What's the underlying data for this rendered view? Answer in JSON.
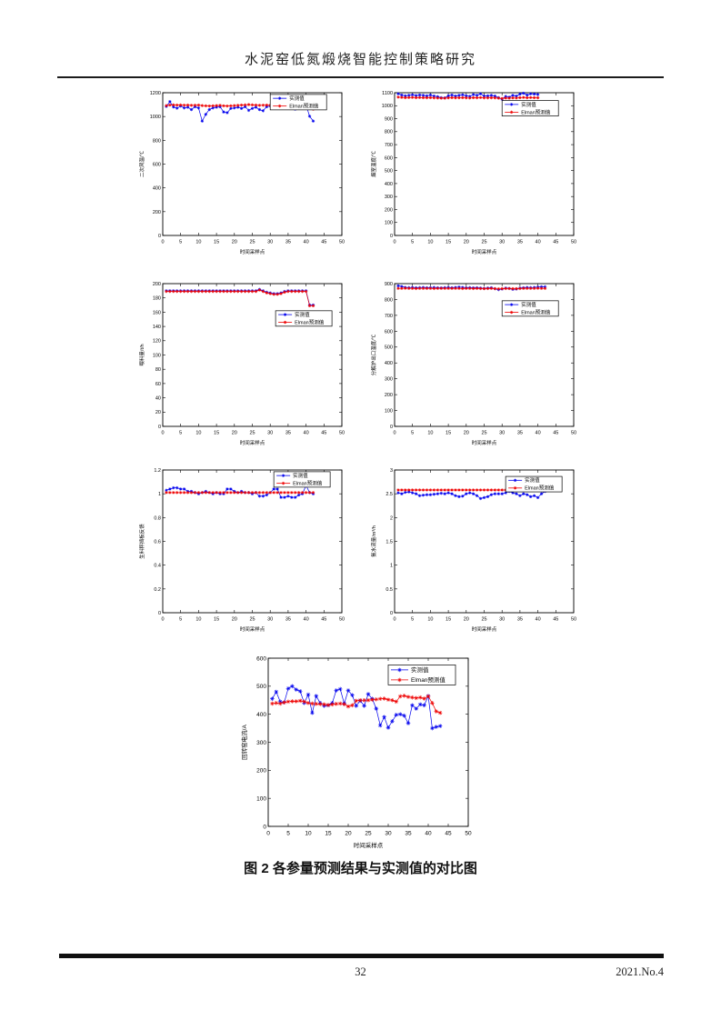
{
  "page": {
    "header_title": "水泥窑低氮煅烧智能控制策略研究",
    "caption": "图 2 各参量预测结果与实测值的对比图",
    "footer": {
      "page_number": "32",
      "issue": "2021.No.4"
    }
  },
  "chart_defaults": {
    "xlabel": "时间采样点",
    "legend": [
      "实测值",
      "Elman预测值"
    ],
    "colors": {
      "measured": "#0000ee",
      "predicted": "#ee0000"
    }
  },
  "chart_data": [
    {
      "type": "line",
      "ylabel": "二次风温/℃",
      "xlabel": "时间采样点",
      "xlim": [
        0,
        50
      ],
      "xtick": 5,
      "ylim": [
        0,
        1200
      ],
      "ytick": 200,
      "legend_pos": [
        0.6,
        0.012
      ],
      "series": [
        {
          "name": "实测值",
          "color": "#0000ee",
          "values": [
            1085,
            1125,
            1080,
            1070,
            1088,
            1072,
            1078,
            1058,
            1082,
            1072,
            962,
            1018,
            1058,
            1072,
            1078,
            1082,
            1038,
            1032,
            1068,
            1072,
            1078,
            1068,
            1082,
            1052,
            1068,
            1078,
            1058,
            1048,
            1082,
            1088,
            1092,
            1098,
            1125,
            1118,
            1128,
            1088,
            1062,
            1078,
            1092,
            1098,
            1002,
            962
          ]
        },
        {
          "name": "Elman预测值",
          "color": "#ee0000",
          "values": [
            1092,
            1096,
            1098,
            1096,
            1097,
            1095,
            1096,
            1094,
            1095,
            1096,
            1092,
            1090,
            1088,
            1090,
            1092,
            1094,
            1090,
            1088,
            1090,
            1092,
            1094,
            1096,
            1098,
            1100,
            1098,
            1096,
            1094,
            1095,
            1096,
            1095,
            1098,
            1100,
            1104,
            1106,
            1104,
            1100,
            1098,
            1096,
            1098,
            1100,
            1082,
            1062
          ]
        }
      ]
    },
    {
      "type": "line",
      "ylabel": "烟室温度/℃",
      "xlabel": "时间采样点",
      "xlim": [
        0,
        50
      ],
      "xtick": 5,
      "ylim": [
        0,
        1100
      ],
      "ytick": 100,
      "legend_pos": [
        0.6,
        0.055
      ],
      "series": [
        {
          "name": "实测值",
          "color": "#0000ee",
          "values": [
            1092,
            1082,
            1076,
            1080,
            1084,
            1078,
            1082,
            1080,
            1076,
            1082,
            1074,
            1070,
            1062,
            1060,
            1076,
            1082,
            1074,
            1080,
            1084,
            1076,
            1072,
            1086,
            1080,
            1092,
            1074,
            1076,
            1080,
            1074,
            1062,
            1050,
            1072,
            1066,
            1080,
            1074,
            1090,
            1096,
            1082,
            1092,
            1090,
            1086
          ]
        },
        {
          "name": "Elman预测值",
          "color": "#ee0000",
          "values": [
            1066,
            1064,
            1062,
            1063,
            1064,
            1062,
            1063,
            1062,
            1061,
            1062,
            1060,
            1059,
            1058,
            1058,
            1060,
            1062,
            1060,
            1061,
            1062,
            1060,
            1059,
            1062,
            1061,
            1063,
            1060,
            1060,
            1061,
            1060,
            1058,
            1056,
            1059,
            1058,
            1060,
            1059,
            1062,
            1064,
            1061,
            1063,
            1062,
            1061
          ]
        }
      ]
    },
    {
      "type": "line",
      "ylabel": "喂料量/t/h",
      "xlabel": "时间采样点",
      "xlim": [
        0,
        50
      ],
      "xtick": 5,
      "ylim": [
        0,
        200
      ],
      "ytick": 20,
      "legend_pos": [
        0.63,
        0.19
      ],
      "series": [
        {
          "name": "实测值",
          "color": "#0000ee",
          "values": [
            190,
            190,
            190,
            190,
            190,
            190,
            190,
            190,
            190,
            190,
            190,
            190,
            190,
            190,
            190,
            190,
            190,
            190,
            190,
            190,
            190,
            190,
            190,
            190,
            190,
            190,
            192,
            190,
            188,
            187,
            186,
            186,
            187,
            189,
            190,
            190,
            190,
            190,
            190,
            190,
            170,
            170
          ]
        },
        {
          "name": "Elman预测值",
          "color": "#ee0000",
          "values": [
            189,
            189,
            189,
            189,
            189,
            189,
            189,
            189,
            189,
            189,
            189,
            189,
            189,
            189,
            189,
            189,
            189,
            189,
            189,
            189,
            189,
            189,
            189,
            189,
            189,
            189,
            191,
            189,
            187,
            186,
            185,
            185,
            186,
            188,
            189,
            189,
            189,
            189,
            189,
            189,
            169,
            169
          ]
        }
      ]
    },
    {
      "type": "line",
      "ylabel": "分解炉出口温度/℃",
      "xlabel": "时间采样点",
      "xlim": [
        0,
        50
      ],
      "xtick": 5,
      "ylim": [
        0,
        900
      ],
      "ytick": 100,
      "legend_pos": [
        0.6,
        0.12
      ],
      "series": [
        {
          "name": "实测值",
          "color": "#0000ee",
          "values": [
            886,
            882,
            876,
            875,
            876,
            874,
            875,
            876,
            874,
            875,
            876,
            874,
            873,
            875,
            876,
            874,
            876,
            878,
            876,
            874,
            875,
            873,
            874,
            872,
            870,
            872,
            874,
            868,
            862,
            866,
            872,
            870,
            864,
            866,
            872,
            874,
            876,
            875,
            876,
            878,
            880,
            880
          ]
        },
        {
          "name": "Elman预测值",
          "color": "#ee0000",
          "values": [
            870,
            870,
            871,
            870,
            870,
            869,
            870,
            870,
            870,
            870,
            869,
            870,
            870,
            870,
            870,
            870,
            870,
            870,
            869,
            870,
            870,
            869,
            870,
            869,
            868,
            869,
            870,
            868,
            867,
            868,
            869,
            869,
            868,
            868,
            869,
            870,
            870,
            870,
            870,
            871,
            870,
            870
          ]
        }
      ]
    },
    {
      "type": "line",
      "ylabel": "生料秤挡板反馈",
      "xlabel": "时间采样点",
      "xlim": [
        0,
        50
      ],
      "xtick": 5,
      "ylim": [
        0,
        1.2
      ],
      "ytick": 0.2,
      "legend_pos": [
        0.62,
        0.012
      ],
      "series": [
        {
          "name": "实测值",
          "color": "#0000ee",
          "values": [
            1.03,
            1.04,
            1.05,
            1.05,
            1.04,
            1.04,
            1.02,
            1.02,
            1.01,
            1.0,
            1.01,
            1.02,
            1.01,
            1.0,
            1.01,
            1.0,
            1.0,
            1.04,
            1.04,
            1.02,
            1.01,
            1.02,
            1.01,
            1.01,
            1.0,
            1.01,
            0.98,
            0.98,
            0.99,
            1.01,
            1.04,
            1.04,
            0.97,
            0.97,
            0.98,
            0.97,
            0.97,
            0.99,
            1.0,
            1.07,
            1.01,
            1.0
          ]
        },
        {
          "name": "Elman预测值",
          "color": "#ee0000",
          "values": [
            1.01,
            1.01,
            1.01,
            1.01,
            1.01,
            1.01,
            1.01,
            1.01,
            1.01,
            1.01,
            1.01,
            1.01,
            1.01,
            1.01,
            1.01,
            1.01,
            1.01,
            1.01,
            1.01,
            1.01,
            1.01,
            1.01,
            1.01,
            1.01,
            1.01,
            1.01,
            1.01,
            1.01,
            1.01,
            1.01,
            1.01,
            1.01,
            1.01,
            1.01,
            1.01,
            1.01,
            1.01,
            1.01,
            1.01,
            1.01,
            1.01,
            1.01
          ]
        }
      ]
    },
    {
      "type": "line",
      "ylabel": "氨水流量/m³/h",
      "xlabel": "时间采样点",
      "xlim": [
        0,
        50
      ],
      "xtick": 5,
      "ylim": [
        0,
        3
      ],
      "ytick": 0.5,
      "legend_pos": [
        0.62,
        0.045
      ],
      "series": [
        {
          "name": "实测值",
          "color": "#0000ee",
          "values": [
            2.52,
            2.5,
            2.53,
            2.54,
            2.52,
            2.5,
            2.46,
            2.47,
            2.48,
            2.48,
            2.49,
            2.5,
            2.51,
            2.5,
            2.52,
            2.5,
            2.46,
            2.44,
            2.45,
            2.5,
            2.52,
            2.5,
            2.46,
            2.4,
            2.42,
            2.44,
            2.48,
            2.5,
            2.5,
            2.5,
            2.52,
            2.55,
            2.52,
            2.5,
            2.46,
            2.5,
            2.48,
            2.44,
            2.46,
            2.42,
            2.5,
            2.55
          ]
        },
        {
          "name": "Elman预测值",
          "color": "#ee0000",
          "values": [
            2.58,
            2.58,
            2.58,
            2.58,
            2.58,
            2.58,
            2.58,
            2.58,
            2.58,
            2.58,
            2.58,
            2.58,
            2.58,
            2.58,
            2.58,
            2.58,
            2.58,
            2.58,
            2.58,
            2.58,
            2.58,
            2.58,
            2.58,
            2.58,
            2.58,
            2.58,
            2.58,
            2.58,
            2.58,
            2.58,
            2.58,
            2.58,
            2.58,
            2.58,
            2.58,
            2.58,
            2.58,
            2.58,
            2.58,
            2.58,
            2.58,
            2.58
          ]
        }
      ]
    },
    {
      "type": "line",
      "ylabel": "回转窑电流/A",
      "xlabel": "时间采样点",
      "xlim": [
        0,
        50
      ],
      "xtick": 5,
      "ylim": [
        0,
        600
      ],
      "ytick": 100,
      "legend_pos": [
        0.6,
        0.04
      ],
      "series": [
        {
          "name": "实测值",
          "color": "#0000ee",
          "values": [
            455,
            480,
            445,
            442,
            492,
            500,
            488,
            482,
            440,
            470,
            405,
            465,
            440,
            430,
            432,
            440,
            485,
            490,
            438,
            485,
            468,
            430,
            448,
            430,
            472,
            455,
            420,
            360,
            390,
            352,
            375,
            398,
            400,
            395,
            368,
            432,
            420,
            435,
            432,
            465,
            350,
            355,
            358
          ]
        },
        {
          "name": "Elman预测值",
          "color": "#ee0000",
          "values": [
            438,
            440,
            438,
            442,
            445,
            446,
            446,
            448,
            445,
            440,
            438,
            437,
            436,
            435,
            433,
            435,
            437,
            438,
            436,
            428,
            432,
            448,
            450,
            450,
            450,
            452,
            453,
            455,
            456,
            452,
            450,
            445,
            464,
            466,
            462,
            460,
            458,
            460,
            456,
            464,
            440,
            410,
            405
          ]
        }
      ]
    }
  ]
}
